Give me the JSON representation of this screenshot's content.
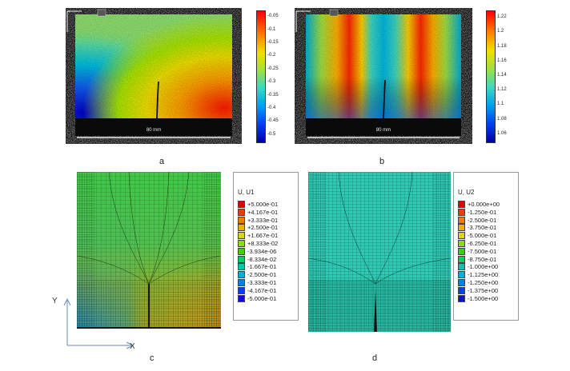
{
  "panels": {
    "a": {
      "label": "a",
      "scale_text": "80 mm",
      "colorbar_ticks": [
        "-0.05",
        "-0.1",
        "-0.15",
        "-0.2",
        "-0.25",
        "-0.3",
        "-0.35",
        "-0.4",
        "-0.45",
        "-0.5"
      ]
    },
    "b": {
      "label": "b",
      "scale_text": "80 mm",
      "colorbar_ticks": [
        "1.22",
        "1.2",
        "1.18",
        "1.16",
        "1.14",
        "1.12",
        "1.1",
        "1.08",
        "1.06"
      ]
    },
    "c": {
      "label": "c",
      "legend_title": "U, U1",
      "legend_values": [
        "+5.000e-01",
        "+4.167e-01",
        "+3.333e-01",
        "+2.500e-01",
        "+1.667e-01",
        "+8.333e-02",
        "-3.934e-06",
        "-8.334e-02",
        "-1.667e-01",
        "-2.500e-01",
        "-3.333e-01",
        "-4.167e-01",
        "-5.000e-01"
      ]
    },
    "d": {
      "label": "d",
      "legend_title": "U, U2",
      "legend_values": [
        "+0.000e+00",
        "-1.250e-01",
        "-2.500e-01",
        "-3.750e-01",
        "-5.000e-01",
        "-6.250e-01",
        "-7.500e-01",
        "-8.750e-01",
        "-1.000e+00",
        "-1.125e+00",
        "-1.250e+00",
        "-1.375e+00",
        "-1.500e+00"
      ]
    }
  },
  "axes": {
    "y_label": "Y",
    "x_label": "X"
  },
  "colors": {
    "legend_c": [
      "#e00000",
      "#f03c00",
      "#f57a00",
      "#f0b000",
      "#d8d800",
      "#90dc00",
      "#3cd200",
      "#00d060",
      "#00c8a8",
      "#00b0d8",
      "#0080e8",
      "#0040f0",
      "#1010d0"
    ],
    "legend_d": [
      "#e00000",
      "#f03c00",
      "#f57a00",
      "#f0b000",
      "#d8d800",
      "#90dc00",
      "#3cd200",
      "#00d060",
      "#00c8a8",
      "#00b0d8",
      "#0080e8",
      "#0040f0",
      "#1010d0"
    ]
  }
}
